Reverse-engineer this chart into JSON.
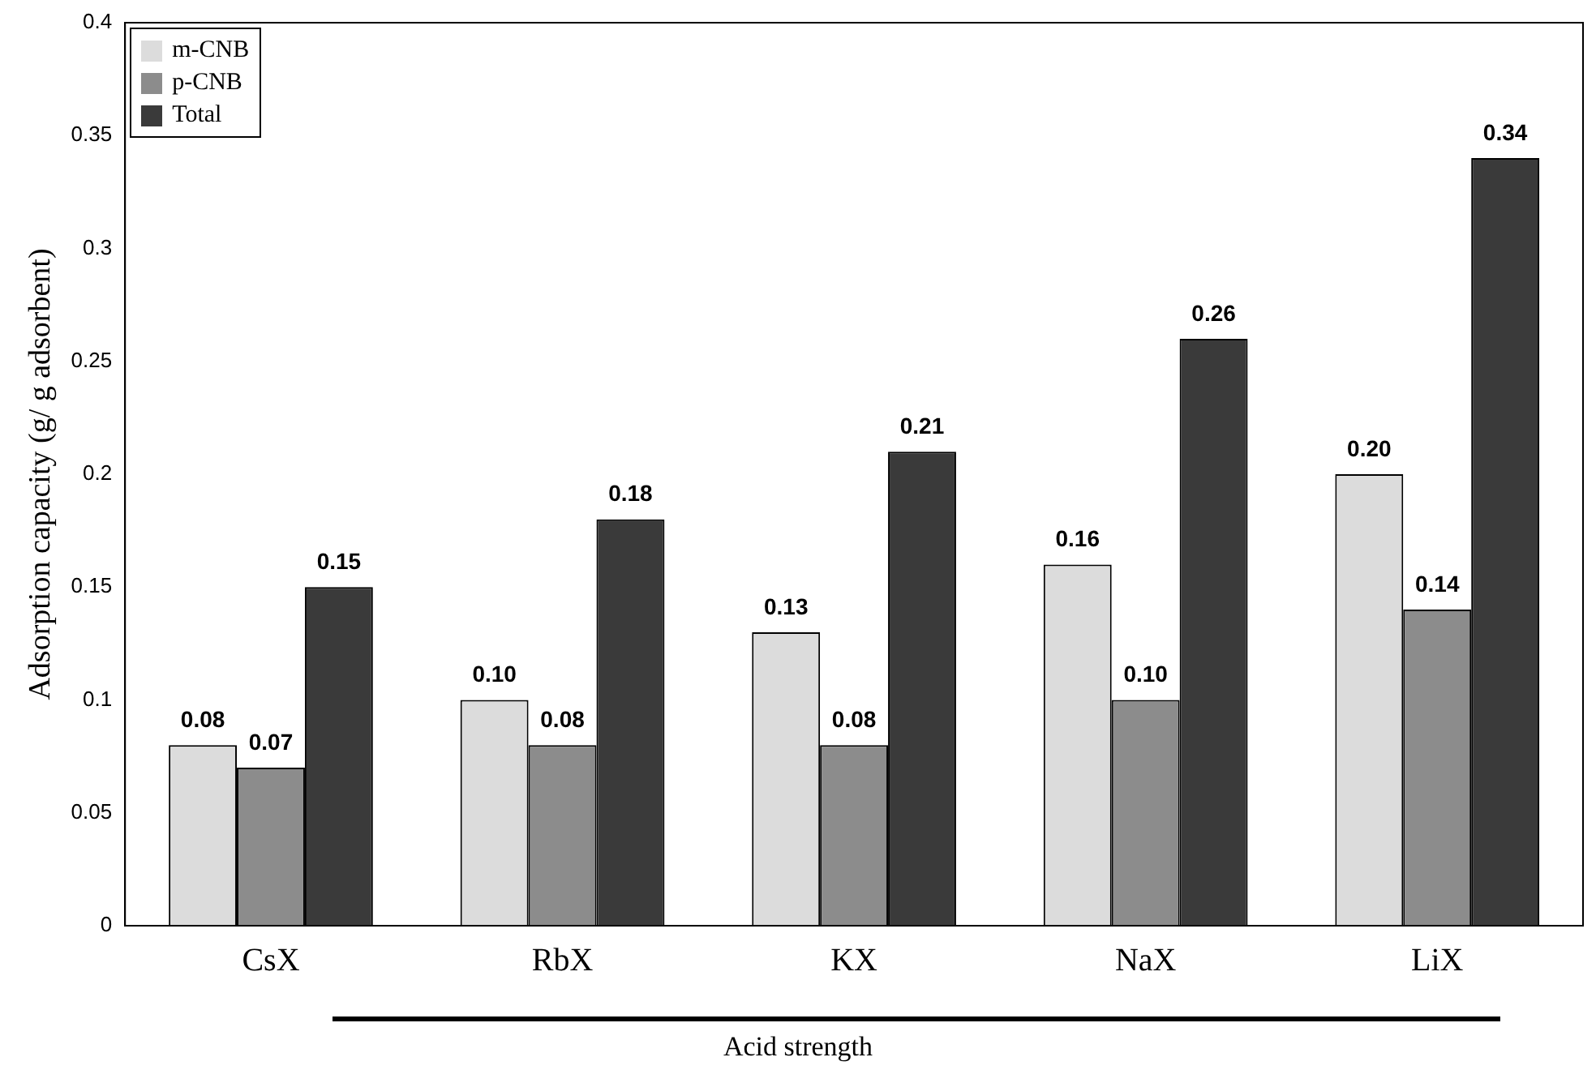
{
  "chart_data": {
    "type": "bar",
    "xlabel": "Acid strength",
    "ylabel": "Adsorption capacity (g/ g adsorbent)",
    "categories": [
      "CsX",
      "RbX",
      "KX",
      "NaX",
      "LiX"
    ],
    "series": [
      {
        "name": "m-CNB",
        "color": "#dcdcdc",
        "values": [
          0.08,
          0.1,
          0.13,
          0.16,
          0.2
        ],
        "value_labels": [
          "0.08",
          "0.10",
          "0.13",
          "0.16",
          "0.20"
        ]
      },
      {
        "name": "p-CNB",
        "color": "#8c8c8c",
        "values": [
          0.07,
          0.08,
          0.08,
          0.1,
          0.14
        ],
        "value_labels": [
          "0.07",
          "0.08",
          "0.08",
          "0.10",
          "0.14"
        ]
      },
      {
        "name": "Total",
        "color": "#3a3a3a",
        "values": [
          0.15,
          0.18,
          0.21,
          0.26,
          0.34
        ],
        "value_labels": [
          "0.15",
          "0.18",
          "0.21",
          "0.26",
          "0.34"
        ]
      }
    ],
    "ylim": [
      0,
      0.4
    ],
    "yticks": [
      0,
      0.05,
      0.1,
      0.15,
      0.2,
      0.25,
      0.3,
      0.35,
      0.4
    ],
    "grid": false,
    "legend": "top left"
  }
}
